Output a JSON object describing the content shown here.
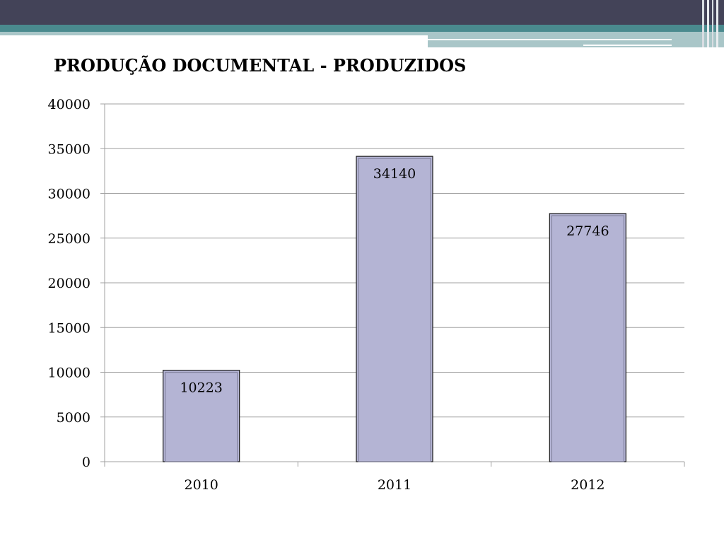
{
  "slide": {
    "title": "PRODUÇÃO DOCUMENTAL - PRODUZIDOS"
  },
  "chart_data": {
    "type": "bar",
    "title": "PRODUÇÃO DOCUMENTAL - PRODUZIDOS",
    "categories": [
      "2010",
      "2011",
      "2012"
    ],
    "values": [
      10223,
      34140,
      27746
    ],
    "data_labels": [
      "10223",
      "34140",
      "27746"
    ],
    "ylim": [
      0,
      40000
    ],
    "yticks": [
      0,
      5000,
      10000,
      15000,
      20000,
      25000,
      30000,
      35000,
      40000
    ],
    "grid": true,
    "legend": "none",
    "bar_color": "#b4b4d4",
    "bar_edge_color": "#1a1a1a"
  },
  "colors": {
    "header_dark": "#434358",
    "header_teal": "#4a8a8e",
    "header_light": "#a9c6c8",
    "gridline": "#a0a0a0"
  }
}
